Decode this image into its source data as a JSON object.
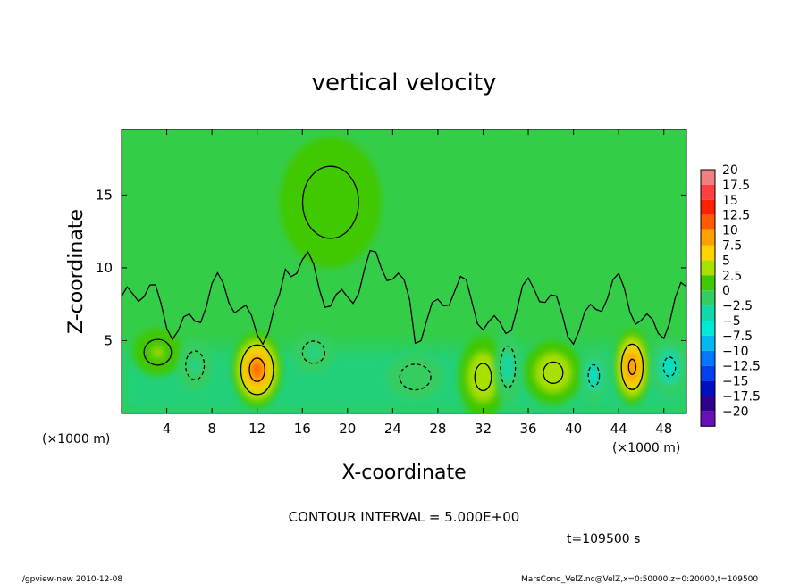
{
  "chart_data": {
    "type": "heatmap",
    "title": "vertical velocity",
    "xlabel": "X-coordinate",
    "ylabel": "Z-coordinate",
    "x_unit": "(×1000 m)",
    "x_unit_right": "(×1000 m)",
    "xlim": [
      0,
      50
    ],
    "ylim": [
      0,
      19.5
    ],
    "x_ticks": [
      4,
      8,
      12,
      16,
      20,
      24,
      28,
      32,
      36,
      40,
      44,
      48
    ],
    "x_tick_labels": [
      "4",
      "8",
      "12",
      "16",
      "20",
      "24",
      "28",
      "32",
      "36",
      "40",
      "44",
      "48"
    ],
    "y_ticks": [
      5,
      10,
      15
    ],
    "y_tick_labels": [
      "5",
      "10",
      "15"
    ],
    "colorbar": {
      "levels": [
        20,
        17.5,
        15,
        12.5,
        10,
        7.5,
        5,
        2.5,
        0,
        -2.5,
        -5,
        -7.5,
        -10,
        -12.5,
        -15,
        -17.5,
        -20
      ],
      "labels": [
        "20",
        "17.5",
        "15",
        "12.5",
        "10",
        "7.5",
        "5",
        "2.5",
        "0",
        "−2.5",
        "−5",
        "−7.5",
        "−10",
        "−12.5",
        "−15",
        "−17.5",
        "−20"
      ],
      "colors": [
        "#f08080",
        "#ff4040",
        "#ff2000",
        "#ff5a00",
        "#ffa000",
        "#ffd200",
        "#a8e000",
        "#40c800",
        "#34cd60",
        "#10d8a8",
        "#00e8d8",
        "#00b8f0",
        "#0078ff",
        "#0040f0",
        "#0010c0",
        "#30008c",
        "#6a10b8"
      ]
    },
    "features": [
      {
        "kind": "updraft",
        "x": 12,
        "z": 3.0,
        "peak": 12,
        "rx": 2.2,
        "rz": 2.6
      },
      {
        "kind": "updraft",
        "x": 45.2,
        "z": 3.2,
        "peak": 10,
        "rx": 1.6,
        "rz": 2.6
      },
      {
        "kind": "updraft",
        "x": 38.2,
        "z": 2.8,
        "peak": 5,
        "rx": 2.6,
        "rz": 2.2
      },
      {
        "kind": "updraft",
        "x": 32,
        "z": 2.5,
        "peak": 5,
        "rx": 2.2,
        "rz": 2.8
      },
      {
        "kind": "updraft",
        "x": 3.2,
        "z": 4.2,
        "peak": 3,
        "rx": 2.2,
        "rz": 1.6
      },
      {
        "kind": "updraft",
        "x": 18.5,
        "z": 14.5,
        "peak": 2,
        "rx": 4.5,
        "rz": 4.5
      },
      {
        "kind": "downdraft",
        "x": 6.5,
        "z": 3.3,
        "peak": -3,
        "rx": 1.5,
        "rz": 1.8
      },
      {
        "kind": "downdraft",
        "x": 17,
        "z": 4.2,
        "peak": -3,
        "rx": 1.8,
        "rz": 1.4
      },
      {
        "kind": "downdraft",
        "x": 26,
        "z": 2.5,
        "peak": -2,
        "rx": 2.5,
        "rz": 1.6
      },
      {
        "kind": "downdraft",
        "x": 34.2,
        "z": 3.2,
        "peak": -3.5,
        "rx": 1.2,
        "rz": 2.6
      },
      {
        "kind": "downdraft",
        "x": 41.8,
        "z": 2.6,
        "peak": -6,
        "rx": 1.2,
        "rz": 1.8
      },
      {
        "kind": "downdraft",
        "x": 48.5,
        "z": 3.2,
        "peak": -5,
        "rx": 1.6,
        "rz": 2.0
      }
    ],
    "grid": false,
    "legend": "colorbar-right"
  },
  "annotations": {
    "contour_interval": "CONTOUR INTERVAL = 5.000E+00",
    "time": "t=109500  s",
    "footer_left": "./gpview-new   2010-12-08",
    "footer_right": "MarsCond_VelZ.nc@VelZ,x=0:50000,z=0:20000,t=109500"
  }
}
